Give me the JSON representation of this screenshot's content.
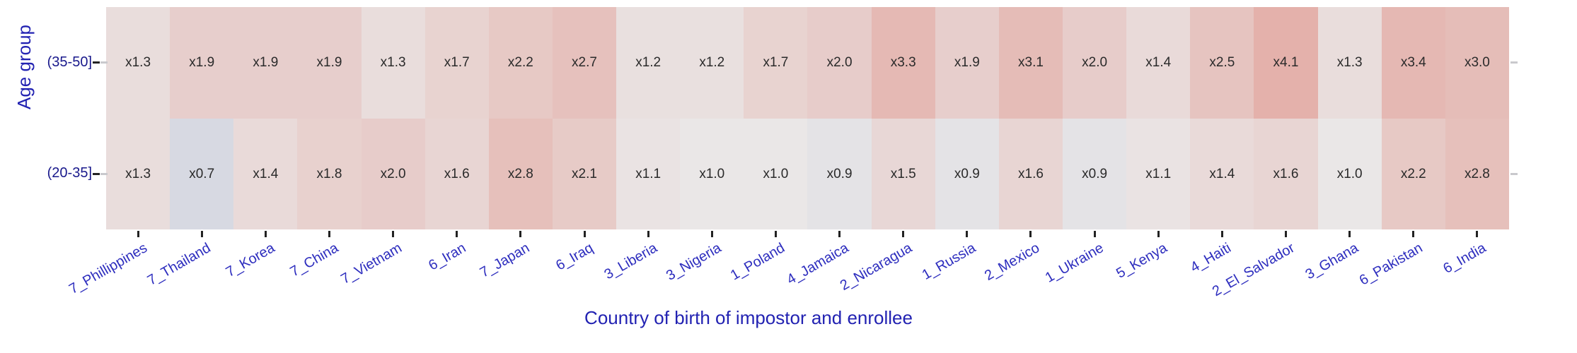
{
  "chart_data": {
    "type": "heatmap",
    "xlabel": "Country of birth of impostor and enrollee",
    "ylabel": "Age group",
    "legend": "none",
    "grid": false,
    "cell_label_prefix": "x",
    "rows": [
      "(35-50]",
      "(20-35]"
    ],
    "categories": [
      "7_Phillippines",
      "7_Thailand",
      "7_Korea",
      "7_China",
      "7_Vietnam",
      "6_Iran",
      "7_Japan",
      "6_Iraq",
      "3_Liberia",
      "3_Nigeria",
      "1_Poland",
      "4_Jamaica",
      "2_Nicaragua",
      "1_Russia",
      "2_Mexico",
      "1_Ukraine",
      "5_Kenya",
      "4_Haiti",
      "2_El_Salvador",
      "3_Ghana",
      "6_Pakistan",
      "6_India"
    ],
    "series": [
      {
        "name": "(35-50]",
        "values": [
          1.3,
          1.9,
          1.9,
          1.9,
          1.3,
          1.7,
          2.2,
          2.7,
          1.2,
          1.2,
          1.7,
          2.0,
          3.3,
          1.9,
          3.1,
          2.0,
          1.4,
          2.5,
          4.1,
          1.3,
          3.4,
          3.0
        ]
      },
      {
        "name": "(20-35]",
        "values": [
          1.3,
          0.7,
          1.4,
          1.8,
          2.0,
          1.6,
          2.8,
          2.1,
          1.1,
          1.0,
          1.0,
          0.9,
          1.5,
          0.9,
          1.6,
          0.9,
          1.1,
          1.4,
          1.6,
          1.0,
          2.2,
          2.8
        ]
      }
    ],
    "colormap": {
      "type": "diverging-log",
      "center": 1.0,
      "vmin": 0.7,
      "vmax": 4.1,
      "low": "#d7d9e2",
      "mid": "#eae7e7",
      "high": "#e4b1ab"
    },
    "colors": {
      "cell_text": "#2a2a2a",
      "xtick_label": "#2d2dbe",
      "ytick_label": "#19198c",
      "axis_title": "#2222b2",
      "tick_mark": "#222222",
      "minor_tick_mark": "#c9c9cd"
    }
  }
}
